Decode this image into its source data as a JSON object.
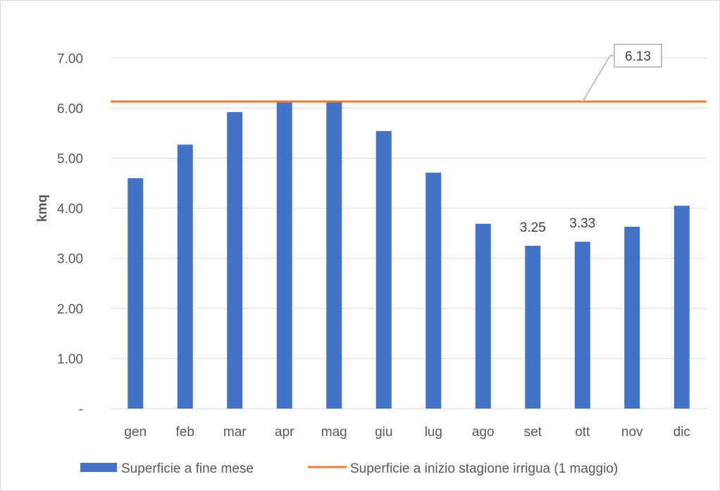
{
  "chart_data": {
    "type": "bar",
    "title": "",
    "xlabel": "",
    "ylabel": "kmq",
    "ylim": [
      0,
      7
    ],
    "y_ticks": [
      0,
      1,
      2,
      3,
      4,
      5,
      6,
      7
    ],
    "y_tick_labels": [
      "-",
      "1.00",
      "2.00",
      "3.00",
      "4.00",
      "5.00",
      "6.00",
      "7.00"
    ],
    "categories": [
      "gen",
      "feb",
      "mar",
      "apr",
      "mag",
      "giu",
      "lug",
      "ago",
      "set",
      "ott",
      "nov",
      "dic"
    ],
    "series": [
      {
        "name": "Superficie a fine mese",
        "type": "bar",
        "color": "#4472C4",
        "values": [
          4.6,
          5.27,
          5.92,
          6.13,
          6.13,
          5.54,
          4.71,
          3.69,
          3.25,
          3.33,
          3.63,
          4.05
        ],
        "labeled_points": [
          {
            "category": "set",
            "label": "3.25"
          },
          {
            "category": "ott",
            "label": "3.33"
          }
        ]
      },
      {
        "name": "Superficie a inizio stagione irrigua (1 maggio)",
        "type": "line",
        "color": "#ED7D31",
        "values": [
          6.13,
          6.13,
          6.13,
          6.13,
          6.13,
          6.13,
          6.13,
          6.13,
          6.13,
          6.13,
          6.13,
          6.13
        ],
        "callout_label": "6.13"
      }
    ],
    "grid": true,
    "legend_position": "bottom"
  }
}
